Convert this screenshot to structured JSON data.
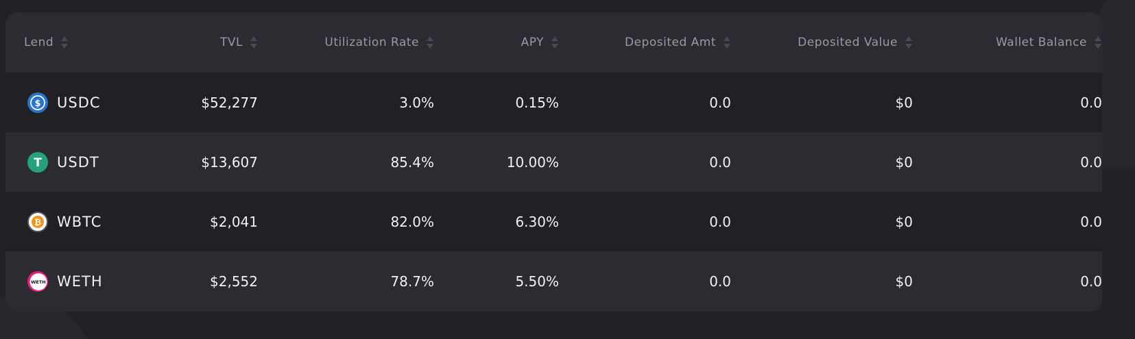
{
  "table": {
    "headers": {
      "lend": "Lend",
      "tvl": "TVL",
      "utilization": "Utilization Rate",
      "apy": "APY",
      "deposited_amt": "Deposited Amt",
      "deposited_value": "Deposited Value",
      "wallet_balance": "Wallet Balance"
    },
    "rows": [
      {
        "asset": "USDC",
        "icon": "usdc-icon",
        "tvl": "$52,277",
        "utilization": "3.0%",
        "apy": "0.15%",
        "deposited_amt": "0.0",
        "deposited_value": "$0",
        "wallet_balance": "0.0"
      },
      {
        "asset": "USDT",
        "icon": "usdt-icon",
        "tvl": "$13,607",
        "utilization": "85.4%",
        "apy": "10.00%",
        "deposited_amt": "0.0",
        "deposited_value": "$0",
        "wallet_balance": "0.0"
      },
      {
        "asset": "WBTC",
        "icon": "wbtc-icon",
        "tvl": "$2,041",
        "utilization": "82.0%",
        "apy": "6.30%",
        "deposited_amt": "0.0",
        "deposited_value": "$0",
        "wallet_balance": "0.0"
      },
      {
        "asset": "WETH",
        "icon": "weth-icon",
        "tvl": "$2,552",
        "utilization": "78.7%",
        "apy": "5.50%",
        "deposited_amt": "0.0",
        "deposited_value": "$0",
        "wallet_balance": "0.0"
      }
    ]
  },
  "colors": {
    "background": "#222126",
    "card": "#2c2b31",
    "row_dark": "#212025",
    "header_text": "#9a9aa6",
    "cell_text": "#f2f2f5",
    "usdc": "#2775ca",
    "usdt": "#26a17b",
    "wbtc": "#f7931a",
    "weth": "#ec1a7a"
  },
  "icons": {
    "usdc_glyph": "$",
    "usdt_glyph": "T",
    "wbtc_glyph": "₿",
    "weth_glyph": "WETH"
  }
}
